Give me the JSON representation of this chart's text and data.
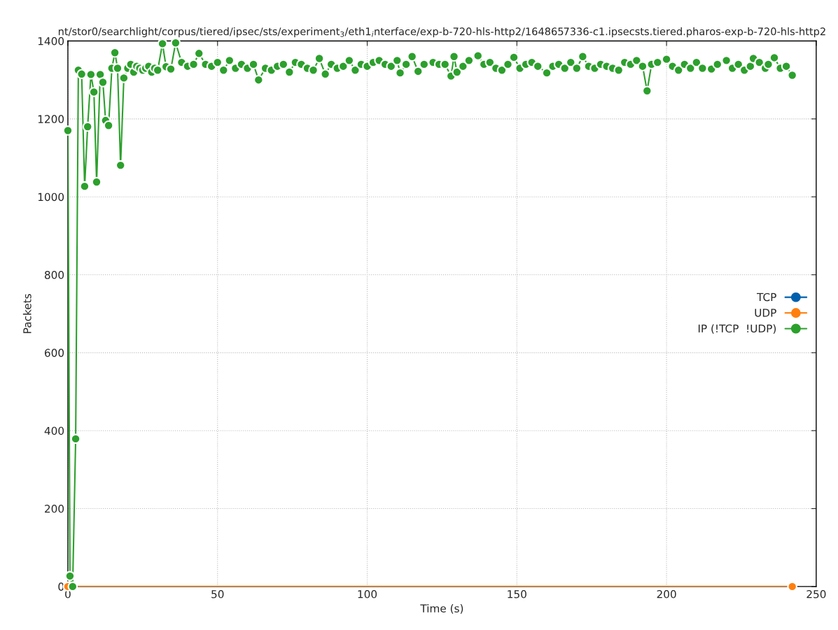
{
  "chart_data": {
    "type": "line",
    "title": "nt/stor0/searchlight/corpus/tiered/ipsec/sts/experiment$_{3}$/eth1$_{i}$nterface/exp-b-720-hls-http2/1648657336-c1.ipsecsts.tiered.pharos-exp-b-720-hls-http2",
    "xlabel": "Time (s)",
    "ylabel": "Packets",
    "series": [
      {
        "name": "TCP",
        "color": "#0060ad"
      },
      {
        "name": "UDP",
        "color": "#ff7f0e",
        "x": [
          0,
          242
        ],
        "values": [
          0,
          0
        ]
      },
      {
        "name": "IP (!TCP  !UDP)",
        "color": "#2ca02c",
        "x": [
          0,
          0.7,
          1.6,
          2.6,
          3.5,
          4.6,
          5.6,
          6.6,
          7.7,
          8.7,
          9.6,
          10.8,
          11.7,
          12.6,
          13.6,
          14.7,
          15.7,
          16.6,
          17.6,
          18.7,
          20,
          21,
          22,
          23,
          24,
          25,
          26,
          27,
          28,
          29,
          30,
          31.6,
          32.8,
          34.4,
          36,
          38,
          40,
          42,
          43.8,
          46,
          48,
          50,
          52,
          54,
          56,
          58,
          60,
          62,
          63.7,
          66,
          68,
          70,
          72,
          74,
          76,
          78,
          80,
          82,
          84,
          86,
          88,
          90,
          92,
          94,
          96,
          98,
          100,
          102,
          104,
          106,
          108,
          110,
          111,
          113,
          115,
          117,
          119,
          122,
          124,
          126,
          128,
          129,
          130,
          132,
          134,
          137,
          139,
          141,
          143,
          145,
          147,
          149,
          151,
          153,
          155,
          157,
          160,
          162,
          164,
          166,
          168,
          170,
          172,
          174,
          176,
          178,
          180,
          182,
          184,
          186,
          188,
          190,
          192,
          193.5,
          195,
          197,
          200,
          202,
          204,
          206,
          208,
          210,
          212,
          215,
          217,
          220,
          222,
          224,
          226,
          228,
          229,
          231,
          233,
          234,
          236,
          238,
          240,
          242
        ],
        "values": [
          1170,
          27,
          0,
          379,
          1325,
          1315,
          1027,
          1180,
          1314,
          1269,
          1038,
          1314,
          1294,
          1196,
          1183,
          1330,
          1370,
          1330,
          1081,
          1305,
          1330,
          1340,
          1320,
          1335,
          1330,
          1325,
          1330,
          1335,
          1320,
          1330,
          1325,
          1393,
          1334,
          1328,
          1395,
          1345,
          1335,
          1340,
          1368,
          1340,
          1335,
          1345,
          1325,
          1350,
          1330,
          1340,
          1330,
          1340,
          1300,
          1330,
          1325,
          1335,
          1340,
          1320,
          1345,
          1340,
          1330,
          1325,
          1355,
          1315,
          1340,
          1330,
          1335,
          1350,
          1325,
          1340,
          1335,
          1345,
          1350,
          1340,
          1335,
          1350,
          1318,
          1340,
          1360,
          1322,
          1340,
          1345,
          1340,
          1340,
          1310,
          1360,
          1320,
          1335,
          1350,
          1362,
          1340,
          1345,
          1330,
          1325,
          1340,
          1358,
          1330,
          1340,
          1345,
          1335,
          1318,
          1335,
          1340,
          1330,
          1345,
          1330,
          1360,
          1335,
          1330,
          1340,
          1335,
          1330,
          1325,
          1345,
          1340,
          1350,
          1335,
          1272,
          1340,
          1345,
          1353,
          1335,
          1325,
          1340,
          1330,
          1345,
          1330,
          1328,
          1340,
          1350,
          1330,
          1340,
          1325,
          1335,
          1355,
          1345,
          1330,
          1340,
          1357,
          1330,
          1335,
          1312
        ]
      }
    ],
    "xlim": [
      0,
      250
    ],
    "ylim": [
      0,
      1400
    ],
    "xticks": [
      0,
      50,
      100,
      150,
      200,
      250
    ],
    "yticks": [
      0,
      200,
      400,
      600,
      800,
      1000,
      1200,
      1400
    ],
    "grid": true,
    "legend": "right",
    "marker": "circle",
    "line_style": "solid"
  }
}
